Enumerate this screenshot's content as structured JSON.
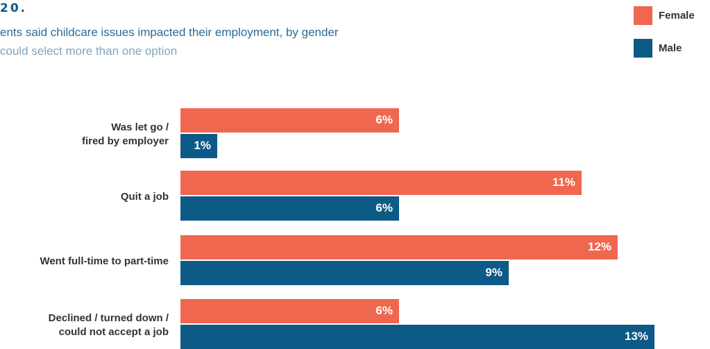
{
  "header": {
    "figure_number": "20.",
    "subtitle_line1": "ents said childcare issues impacted their employment, by gender",
    "subtitle_line2": "could select more than one option"
  },
  "legend": [
    {
      "label": "Female",
      "color": "#f0674f"
    },
    {
      "label": "Male",
      "color": "#0d5a87"
    }
  ],
  "chart_data": {
    "type": "bar",
    "orientation": "horizontal",
    "categories": [
      [
        "Was let go /",
        "fired by employer"
      ],
      [
        "Quit a job"
      ],
      [
        "Went full-time to part-time"
      ],
      [
        "Declined / turned down /",
        "could not accept a job"
      ]
    ],
    "series": [
      {
        "name": "Female",
        "color": "#f0674f",
        "values": [
          6,
          11,
          12,
          6
        ],
        "labels": [
          "6%",
          "11%",
          "12%",
          "6%"
        ]
      },
      {
        "name": "Male",
        "color": "#0d5a87",
        "values": [
          1,
          6,
          9,
          13
        ],
        "labels": [
          "1%",
          "6%",
          "9%",
          "13%"
        ]
      }
    ],
    "value_unit": "%",
    "xlim": [
      0,
      13
    ],
    "grid": false,
    "legend_position": "top-right"
  }
}
